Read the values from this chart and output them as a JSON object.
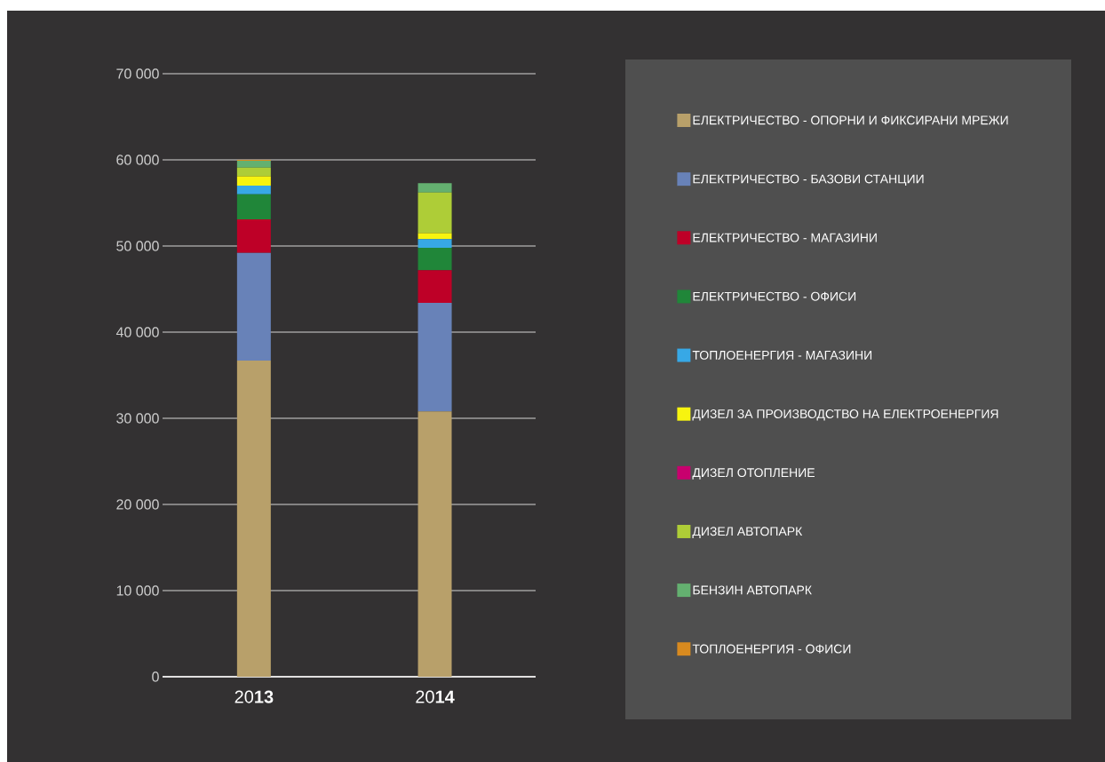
{
  "chart_data": {
    "type": "bar",
    "stacked": true,
    "categories": [
      "20**13**",
      "20**14**"
    ],
    "series": [
      {
        "name": "ЕЛЕКТРИЧЕСТВО - ОПОРНИ И ФИКСИРАНИ МРЕЖИ",
        "color": "#b8a06a",
        "values": [
          36700,
          30800
        ]
      },
      {
        "name": "ЕЛЕКТРИЧЕСТВО - БАЗОВИ СТАНЦИИ",
        "color": "#6882b8",
        "values": [
          12500,
          12600
        ]
      },
      {
        "name": "ЕЛЕКТРИЧЕСТВО - МАГАЗИНИ",
        "color": "#be0027",
        "values": [
          3900,
          3800
        ]
      },
      {
        "name": "ЕЛЕКТРИЧЕСТВО - ОФИСИ",
        "color": "#208639",
        "values": [
          2900,
          2600
        ]
      },
      {
        "name": "ТОПЛОЕНЕРГИЯ - МАГАЗИНИ",
        "color": "#37a8e6",
        "values": [
          1000,
          1000
        ]
      },
      {
        "name": "ДИЗЕЛ ЗА ПРОИЗВОДСТВО НА ЕЛЕКТРОЕНЕРГИЯ",
        "color": "#f7f40f",
        "values": [
          1100,
          700
        ]
      },
      {
        "name": "ДИЗЕЛ ОТОПЛЕНИЕ",
        "color": "#c8006e",
        "values": [
          0,
          0
        ]
      },
      {
        "name": "ДИЗЕЛ АВТОПАРК",
        "color": "#aecd37",
        "values": [
          1000,
          4700
        ]
      },
      {
        "name": "БЕНЗИН АВТОПАРК",
        "color": "#64b070",
        "values": [
          800,
          1100
        ]
      },
      {
        "name": "ТОПЛОЕНЕРГИЯ - ОФИСИ",
        "color": "#d88a1f",
        "values": [
          100,
          0
        ]
      }
    ],
    "ylim": [
      0,
      70000
    ],
    "yticks": [
      0,
      {
        "value": 10000,
        "label": "10 000"
      },
      {
        "value": 20000,
        "label": "20 000"
      },
      {
        "value": 30000,
        "label": "30 000"
      },
      {
        "value": 40000,
        "label": "40 000"
      },
      {
        "value": 50000,
        "label": "50 000"
      },
      {
        "value": 60000,
        "label": "60 000"
      },
      {
        "value": 70000,
        "label": "70 000"
      }
    ],
    "grid": "y",
    "legend": "right"
  }
}
